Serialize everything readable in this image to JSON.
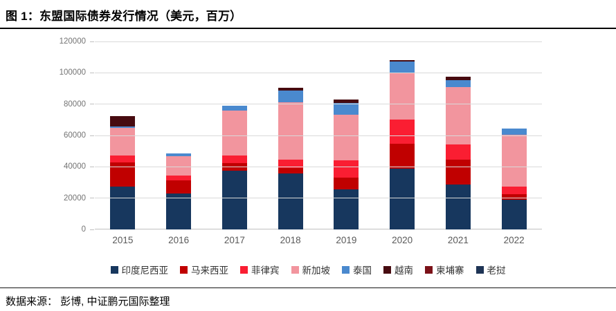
{
  "header": {
    "title": "图 1：东盟国际债券发行情况（美元，百万）"
  },
  "footer": {
    "source": "数据来源： 彭博, 中证鹏元国际整理"
  },
  "chart_data": {
    "type": "bar",
    "stacked": true,
    "title": "东盟国际债券发行情况",
    "unit": "美元，百万",
    "categories": [
      "2015",
      "2016",
      "2017",
      "2018",
      "2019",
      "2020",
      "2021",
      "2022"
    ],
    "series": [
      {
        "name": "印度尼西亚",
        "color": "#17375E",
        "values": [
          27200,
          23100,
          37300,
          35600,
          25600,
          38800,
          28500,
          19000
        ]
      },
      {
        "name": "马来西亚",
        "color": "#C00000",
        "values": [
          15400,
          8100,
          5100,
          3600,
          7300,
          16100,
          16100,
          3300
        ]
      },
      {
        "name": "菲律宾",
        "color": "#FA1E32",
        "values": [
          4600,
          3200,
          4800,
          5400,
          11400,
          15400,
          9500,
          5100
        ]
      },
      {
        "name": "新加坡",
        "color": "#F2959E",
        "values": [
          17800,
          12500,
          28500,
          36700,
          28900,
          29700,
          36600,
          33100
        ]
      },
      {
        "name": "泰国",
        "color": "#4A89CE",
        "values": [
          800,
          1500,
          3200,
          7300,
          7700,
          7300,
          4400,
          4100
        ]
      },
      {
        "name": "越南",
        "color": "#470B10",
        "values": [
          6600,
          0,
          0,
          1800,
          2200,
          1000,
          2200,
          0
        ]
      },
      {
        "name": "柬埔寨",
        "color": "#7B1118",
        "values": [
          0,
          0,
          0,
          0,
          0,
          0,
          0,
          0
        ]
      },
      {
        "name": "老挝",
        "color": "#1E3455",
        "values": [
          0,
          0,
          0,
          0,
          0,
          0,
          0,
          0
        ]
      }
    ],
    "totals": [
      72400,
      48400,
      78900,
      90400,
      83100,
      108300,
      97300,
      64600
    ],
    "ylim": [
      0,
      120000
    ],
    "yticks": [
      0,
      20000,
      40000,
      60000,
      80000,
      100000,
      120000
    ],
    "grid": true,
    "legend_position": "bottom",
    "axis_label_color": "#737373",
    "category_label_color": "#595959",
    "gridline_color": "#D9D9D9"
  }
}
